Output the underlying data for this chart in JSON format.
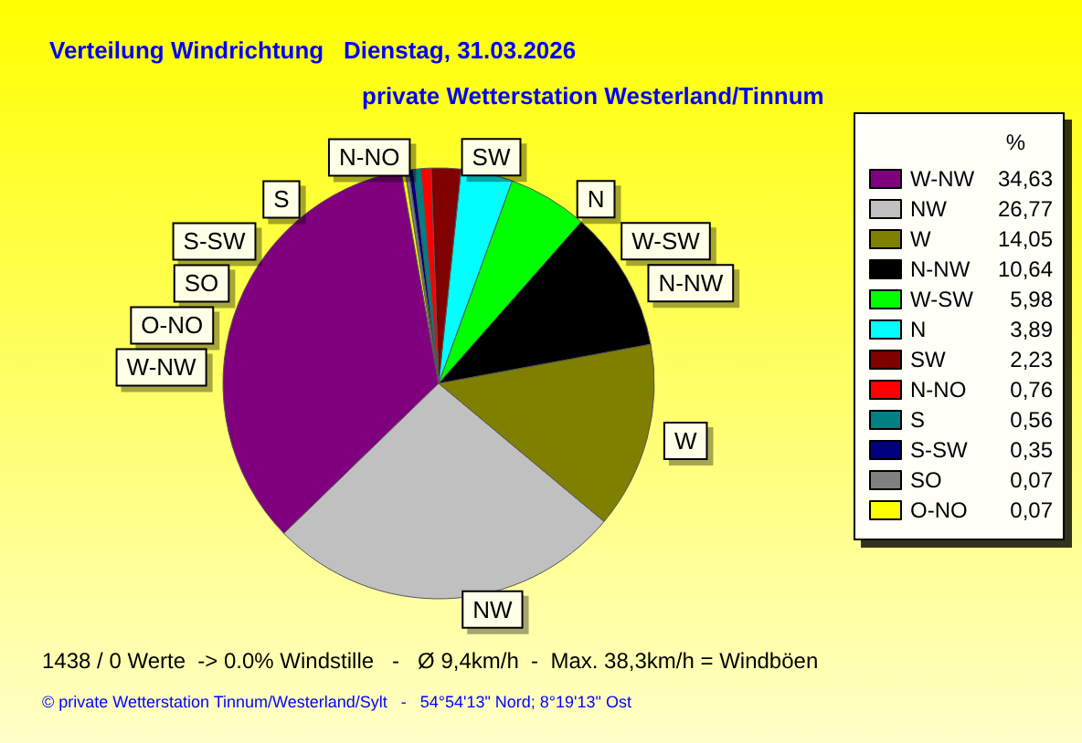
{
  "chart_data": {
    "type": "pie",
    "title": "Verteilung Windrichtung   Dienstag, 31.03.2026",
    "subtitle": "private Wetterstation Westerland/Tinnum",
    "legend_title": "%",
    "legend": "right",
    "categories": [
      "W-NW",
      "NW",
      "W",
      "N-NW",
      "W-SW",
      "N",
      "SW",
      "N-NO",
      "S",
      "S-SW",
      "SO",
      "O-NO"
    ],
    "values": [
      34.63,
      26.77,
      14.05,
      10.64,
      5.98,
      3.89,
      2.23,
      0.76,
      0.56,
      0.35,
      0.07,
      0.07
    ],
    "value_labels": [
      "34,63",
      "26,77",
      "14,05",
      "10,64",
      "5,98",
      "3,89",
      "2,23",
      "0,76",
      "0,56",
      "0,35",
      "0,07",
      "0,07"
    ],
    "colors": [
      "#800080",
      "#c0c0c0",
      "#808000",
      "#000000",
      "#00ff00",
      "#00ffff",
      "#800000",
      "#ff0000",
      "#008080",
      "#000080",
      "#808080",
      "#ffff00"
    ],
    "annotations": [
      "1438 / 0 Werte  -> 0.0% Windstille   -   Ø 9,4km/h  -  Max. 38,3km/h = Windböen",
      "© private Wetterstation Tinnum/Westerland/Sylt   -   54°54'13\" Nord; 8°19'13\" Ost"
    ]
  }
}
